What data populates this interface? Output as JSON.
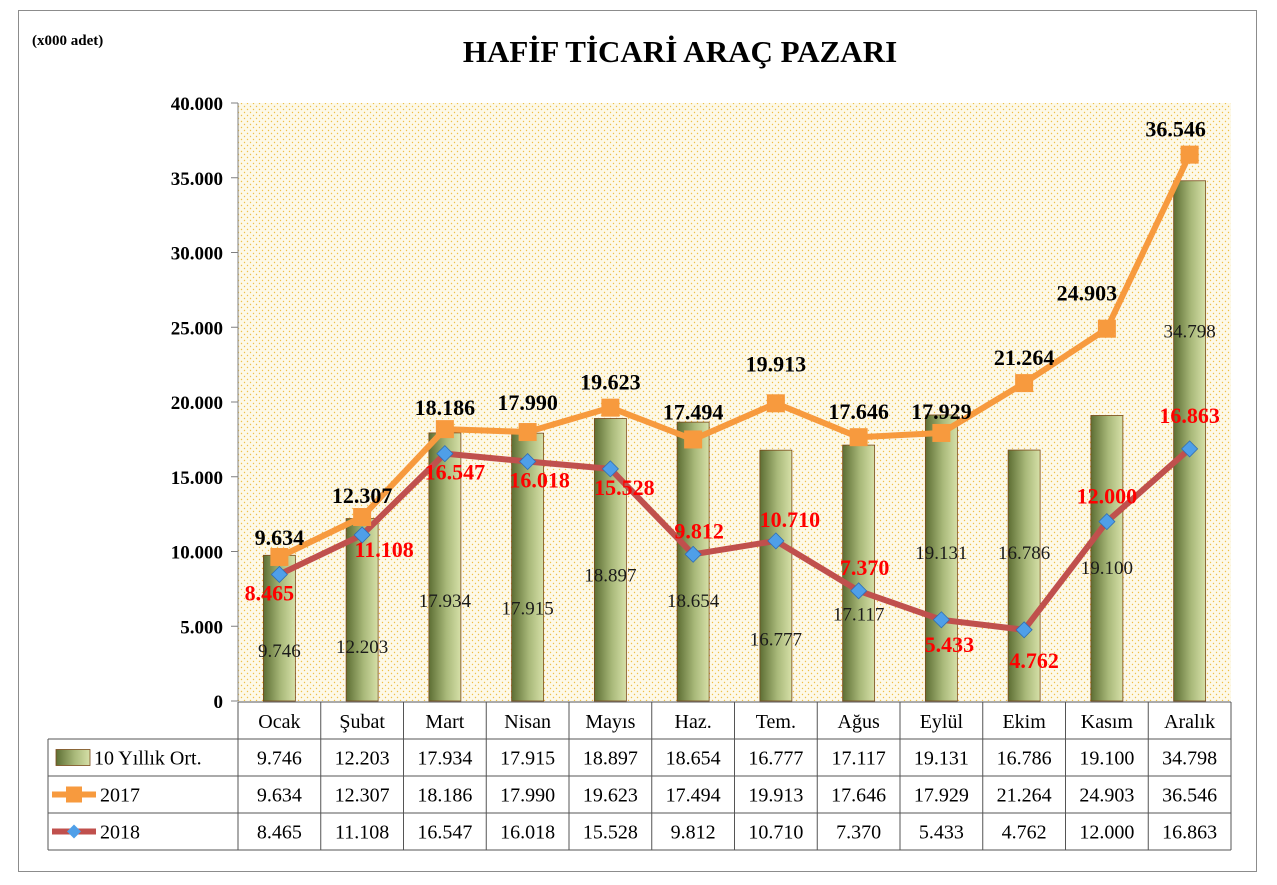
{
  "chart_data": {
    "type": "bar",
    "title": "HAFİF TİCARİ ARAÇ PAZARI",
    "unit_label": "(x000 adet)",
    "categories": [
      "Ocak",
      "Şubat",
      "Mart",
      "Nisan",
      "Mayıs",
      "Haz.",
      "Tem.",
      "Ağus",
      "Eylül",
      "Ekim",
      "Kasım",
      "Aralık"
    ],
    "ylim": [
      0,
      40000
    ],
    "yticks": [
      0,
      5000,
      10000,
      15000,
      20000,
      25000,
      30000,
      35000,
      40000
    ],
    "ytick_labels": [
      "0",
      "5.000",
      "10.000",
      "15.000",
      "20.000",
      "25.000",
      "30.000",
      "35.000",
      "40.000"
    ],
    "grid": false,
    "legend": "data-table",
    "series": [
      {
        "name": "10 Yıllık Ort.",
        "type": "bar",
        "color": "#8a9a5b",
        "values": [
          9746,
          12203,
          17934,
          17915,
          18897,
          18654,
          16777,
          17117,
          19131,
          16786,
          19100,
          34798
        ],
        "labels": [
          "9.746",
          "12.203",
          "17.934",
          "17.915",
          "18.897",
          "18.654",
          "16.777",
          "17.117",
          "19.131",
          "16.786",
          "19.100",
          "34.798"
        ]
      },
      {
        "name": "2017",
        "type": "line",
        "color": "#f79a3e",
        "marker": "square",
        "values": [
          9634,
          12307,
          18186,
          17990,
          19623,
          17494,
          19913,
          17646,
          17929,
          21264,
          24903,
          36546
        ],
        "labels": [
          "9.634",
          "12.307",
          "18.186",
          "17.990",
          "19.623",
          "17.494",
          "19.913",
          "17.646",
          "17.929",
          "21.264",
          "24.903",
          "36.546"
        ]
      },
      {
        "name": "2018",
        "type": "line",
        "color": "#c0504d",
        "marker": "diamond",
        "marker_color": "#4f9fe8",
        "label_color": "#ff0000",
        "values": [
          8465,
          11108,
          16547,
          16018,
          15528,
          9812,
          10710,
          7370,
          5433,
          4762,
          12000,
          16863
        ],
        "labels": [
          "8.465",
          "11.108",
          "16.547",
          "16.018",
          "15.528",
          "9.812",
          "10.710",
          "7.370",
          "5.433",
          "4.762",
          "12.000",
          "16.863"
        ]
      }
    ]
  }
}
